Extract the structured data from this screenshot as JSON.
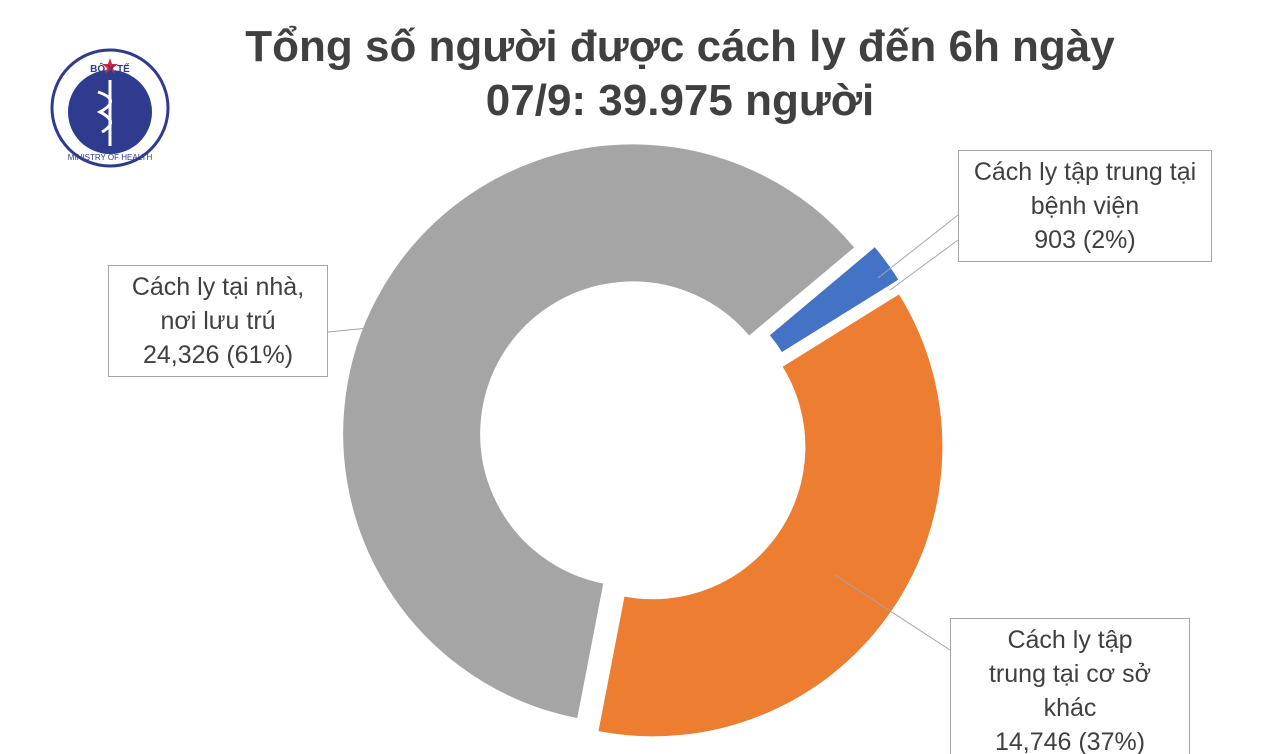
{
  "logo": {
    "top": "BỘ Y TẾ",
    "bottom": "MINISTRY OF HEALTH"
  },
  "chart_data": {
    "type": "donut",
    "title_lines": [
      "Tổng số người được cách ly đến 6h ngày",
      "07/9: 39.975 người"
    ],
    "categories": [
      "Cách ly tập trung tại bệnh viện",
      "Cách ly tập trung tại cơ sở khác",
      "Cách ly tại nhà, nơi lưu trú"
    ],
    "values": [
      903,
      14746,
      24326
    ],
    "value_labels": [
      "903 (2%)",
      "14,746 (37%)",
      "24,326 (61%)"
    ],
    "colors": [
      "#4472c4",
      "#ed7d31",
      "#a5a5a5"
    ]
  }
}
